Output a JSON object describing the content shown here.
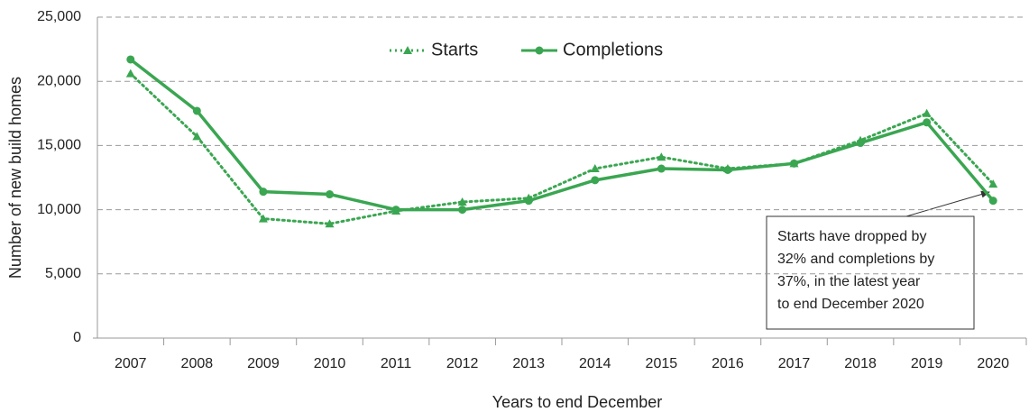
{
  "chart_data": {
    "type": "line",
    "y_label": "Number of new build homes",
    "x_label": "Years to end December",
    "categories": [
      "2007",
      "2008",
      "2009",
      "2010",
      "2011",
      "2012",
      "2013",
      "2014",
      "2015",
      "2016",
      "2017",
      "2018",
      "2019",
      "2020"
    ],
    "series": [
      {
        "name": "Starts",
        "color": "#3aa651",
        "style": "dotted",
        "marker": "triangle",
        "values": [
          20600,
          15700,
          9300,
          8900,
          9900,
          10600,
          10900,
          13200,
          14100,
          13200,
          13600,
          15400,
          17500,
          12000
        ]
      },
      {
        "name": "Completions",
        "color": "#3aa651",
        "style": "solid",
        "marker": "circle",
        "values": [
          21700,
          17700,
          11400,
          11200,
          10000,
          10000,
          10700,
          12300,
          13200,
          13100,
          13600,
          15200,
          16800,
          10700
        ]
      }
    ],
    "ylim": [
      0,
      25000
    ],
    "yticks": [
      0,
      {
        "value": 5000,
        "label": "5,000"
      },
      {
        "value": 10000,
        "label": "10,000"
      },
      {
        "value": 15000,
        "label": "15,000"
      },
      {
        "value": 20000,
        "label": "20,000"
      },
      {
        "value": 25000,
        "label": "25,000"
      }
    ],
    "grid": true,
    "legend": "top",
    "annotation": [
      "Starts have dropped by",
      "32% and completions by",
      "37%, in the latest year",
      "to end December 2020"
    ]
  }
}
